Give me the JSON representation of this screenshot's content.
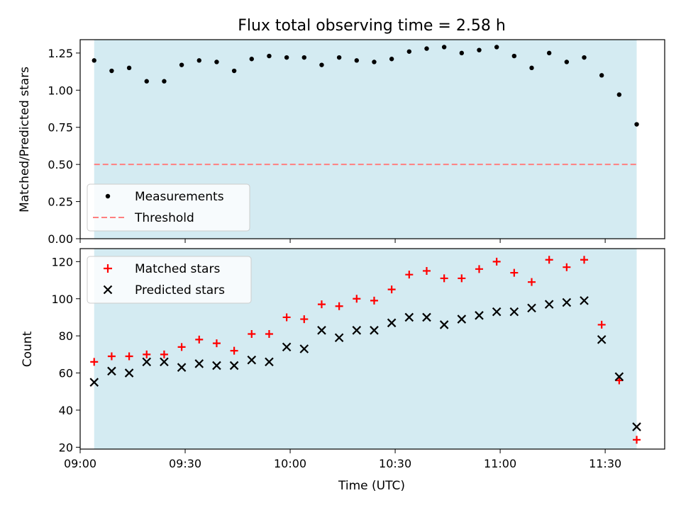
{
  "chart_data": [
    {
      "type": "scatter",
      "title": "Flux total observing time = 2.58 h",
      "xlabel": "",
      "ylabel": "Matched/Predicted stars",
      "ylim": [
        0,
        1.34
      ],
      "yticks": [
        0.0,
        0.25,
        0.5,
        0.75,
        1.0,
        1.25
      ],
      "ytick_labels": [
        "0.00",
        "0.25",
        "0.50",
        "0.75",
        "1.00",
        "1.25"
      ],
      "shaded_span": [
        "09:04",
        "11:39"
      ],
      "threshold": 0.5,
      "legend": {
        "position": "bottom-left",
        "entries": [
          "Measurements",
          "Threshold"
        ]
      },
      "series": [
        {
          "name": "Measurements",
          "color": "#000000",
          "x": [
            "09:04",
            "09:09",
            "09:14",
            "09:19",
            "09:24",
            "09:29",
            "09:34",
            "09:39",
            "09:44",
            "09:49",
            "09:54",
            "09:59",
            "10:04",
            "10:09",
            "10:14",
            "10:19",
            "10:24",
            "10:29",
            "10:34",
            "10:39",
            "10:44",
            "10:49",
            "10:54",
            "10:59",
            "11:04",
            "11:09",
            "11:14",
            "11:19",
            "11:24",
            "11:29",
            "11:34",
            "11:39"
          ],
          "y": [
            1.2,
            1.13,
            1.15,
            1.06,
            1.06,
            1.17,
            1.2,
            1.19,
            1.13,
            1.21,
            1.23,
            1.22,
            1.22,
            1.17,
            1.22,
            1.2,
            1.19,
            1.21,
            1.26,
            1.28,
            1.29,
            1.25,
            1.27,
            1.29,
            1.23,
            1.15,
            1.25,
            1.19,
            1.22,
            1.1,
            0.97,
            0.77
          ]
        },
        {
          "name": "Threshold",
          "color": "#ff7f7f",
          "x": [
            "09:04",
            "11:39"
          ],
          "y": [
            0.5,
            0.5
          ]
        }
      ]
    },
    {
      "type": "scatter",
      "xlabel": "Time (UTC)",
      "ylabel": "Count",
      "ylim": [
        19,
        127
      ],
      "yticks": [
        20,
        40,
        60,
        80,
        100,
        120
      ],
      "xlim": [
        "09:00",
        "11:47"
      ],
      "xticks": [
        "09:00",
        "09:30",
        "10:00",
        "10:30",
        "11:00",
        "11:30"
      ],
      "shaded_span": [
        "09:04",
        "11:39"
      ],
      "legend": {
        "position": "top-left",
        "entries": [
          "Matched stars",
          "Predicted stars"
        ]
      },
      "series": [
        {
          "name": "Matched stars",
          "color": "#ff0000",
          "x": [
            "09:04",
            "09:09",
            "09:14",
            "09:19",
            "09:24",
            "09:29",
            "09:34",
            "09:39",
            "09:44",
            "09:49",
            "09:54",
            "09:59",
            "10:04",
            "10:09",
            "10:14",
            "10:19",
            "10:24",
            "10:29",
            "10:34",
            "10:39",
            "10:44",
            "10:49",
            "10:54",
            "10:59",
            "11:04",
            "11:09",
            "11:14",
            "11:19",
            "11:24",
            "11:29",
            "11:34",
            "11:39"
          ],
          "y": [
            66,
            69,
            69,
            70,
            70,
            74,
            78,
            76,
            72,
            81,
            81,
            90,
            89,
            97,
            96,
            100,
            99,
            105,
            113,
            115,
            111,
            111,
            116,
            120,
            114,
            109,
            121,
            117,
            121,
            86,
            56,
            24
          ]
        },
        {
          "name": "Predicted stars",
          "color": "#000000",
          "x": [
            "09:04",
            "09:09",
            "09:14",
            "09:19",
            "09:24",
            "09:29",
            "09:34",
            "09:39",
            "09:44",
            "09:49",
            "09:54",
            "09:59",
            "10:04",
            "10:09",
            "10:14",
            "10:19",
            "10:24",
            "10:29",
            "10:34",
            "10:39",
            "10:44",
            "10:49",
            "10:54",
            "10:59",
            "11:04",
            "11:09",
            "11:14",
            "11:19",
            "11:24",
            "11:29",
            "11:34",
            "11:39"
          ],
          "y": [
            55,
            61,
            60,
            66,
            66,
            63,
            65,
            64,
            64,
            67,
            66,
            74,
            73,
            83,
            79,
            83,
            83,
            87,
            90,
            90,
            86,
            89,
            91,
            93,
            93,
            95,
            97,
            98,
            99,
            78,
            58,
            31
          ]
        }
      ]
    }
  ],
  "colors": {
    "shade": "#add8e6",
    "threshold": "#ff7f7f",
    "matched": "#ff0000",
    "predicted": "#000000",
    "measurement": "#000000"
  }
}
